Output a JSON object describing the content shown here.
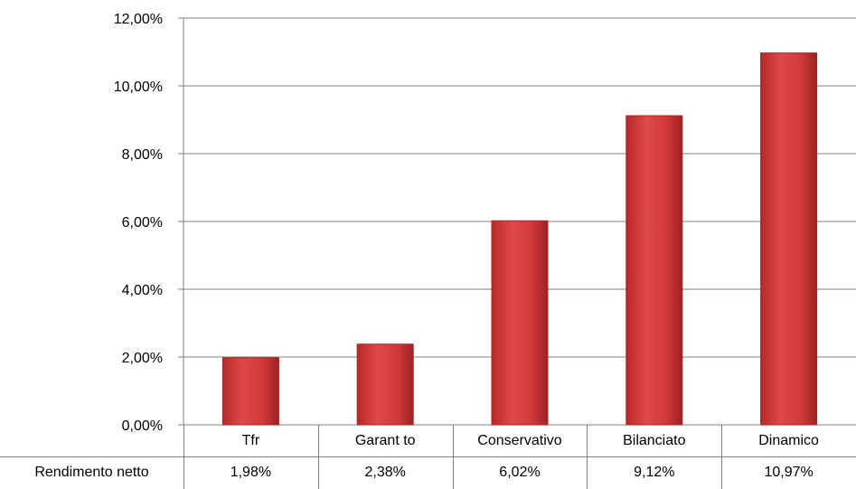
{
  "colors": {
    "bar": "#d33a3a",
    "bar_dark": "#a82424",
    "grid": "#808080"
  },
  "chart_data": {
    "type": "bar",
    "categories": [
      "Tfr",
      "Garant to",
      "Conservativo",
      "Bilanciato",
      "Dinamico"
    ],
    "series": [
      {
        "name": "Rendimento netto",
        "values": [
          1.98,
          2.38,
          6.02,
          9.12,
          10.97
        ]
      }
    ],
    "ylim": [
      0,
      12
    ],
    "yticks": [
      "0,00%",
      "2,00%",
      "4,00%",
      "6,00%",
      "8,00%",
      "10,00%",
      "12,00%"
    ],
    "data_table": {
      "row_label": "Rendimento netto",
      "values": [
        "1,98%",
        "2,38%",
        "6,02%",
        "9,12%",
        "10,97%"
      ]
    },
    "grid": true,
    "legend": "none"
  }
}
